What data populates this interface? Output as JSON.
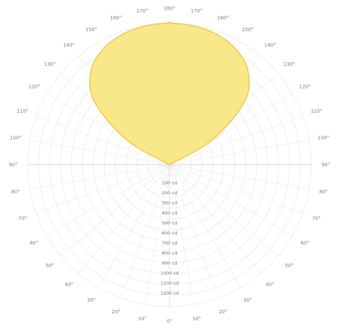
{
  "chart_data": {
    "type": "polar-area",
    "title": "",
    "angle_labels": [
      "0°",
      "10°",
      "20°",
      "30°",
      "40°",
      "50°",
      "60°",
      "70°",
      "80°",
      "90°",
      "100°",
      "110°",
      "120°",
      "130°",
      "140°",
      "150°",
      "160°",
      "170°",
      "180°",
      "170°",
      "160°",
      "150°",
      "140°",
      "130°",
      "120°",
      "110°",
      "100°",
      "90°",
      "80°",
      "70°",
      "60°",
      "50°",
      "40°",
      "30°",
      "20°",
      "10°"
    ],
    "radial_labels": [
      "100 cd",
      "200 cd",
      "300 cd",
      "400 cd",
      "500 cd",
      "600 cd",
      "700 cd",
      "800 cd",
      "900 cd",
      "1000 cd",
      "1100 cd",
      "1200 cd"
    ],
    "rlim": [
      0,
      1300
    ],
    "series": [
      {
        "angles_deg": [
          110,
          120,
          130,
          140,
          150,
          160,
          170,
          180
        ],
        "values": [
          0,
          450,
          900,
          1120,
          1220,
          1270,
          1290,
          1300
        ],
        "color": "#f8e680"
      }
    ],
    "grid": true,
    "ring_count": 13,
    "spoke_step_deg": 10,
    "zero_at": "bottom"
  }
}
